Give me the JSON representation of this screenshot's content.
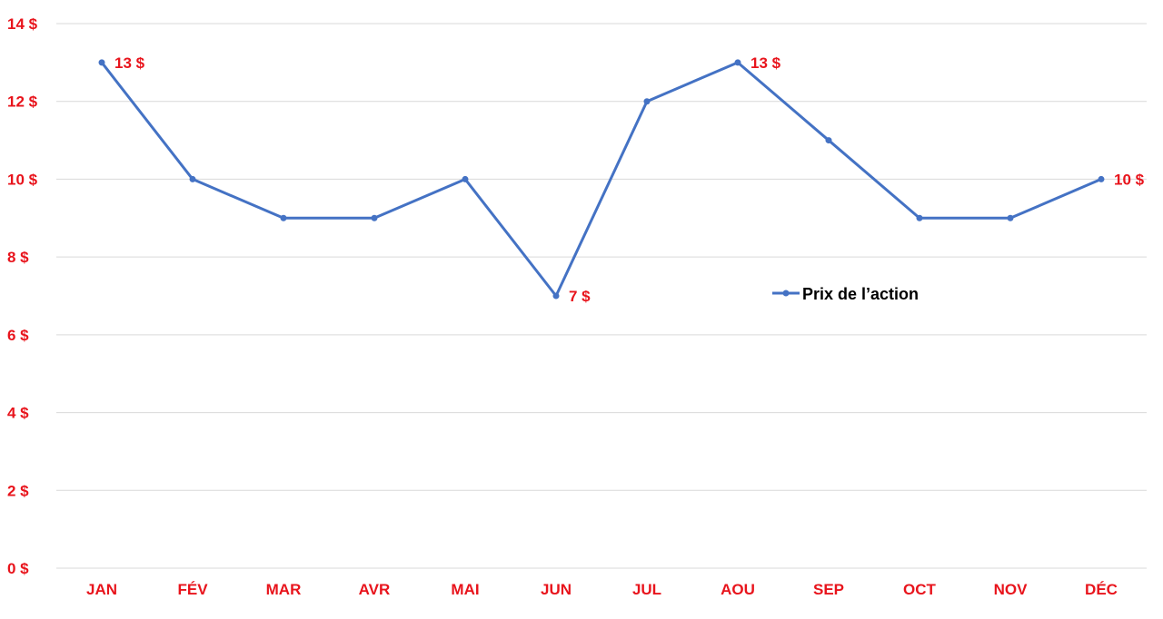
{
  "chart_data": {
    "type": "line",
    "categories": [
      "JAN",
      "FÉV",
      "MAR",
      "AVR",
      "MAI",
      "JUN",
      "JUL",
      "AOU",
      "SEP",
      "OCT",
      "NOV",
      "DÉC"
    ],
    "series": [
      {
        "name": "Prix de l’action",
        "values": [
          13,
          10,
          9,
          9,
          10,
          7,
          12,
          13,
          11,
          9,
          9,
          10
        ]
      }
    ],
    "y_ticks": [
      "0 $",
      "2 $",
      "4 $",
      "6 $",
      "8 $",
      "10 $",
      "12 $",
      "14 $"
    ],
    "ylim": [
      0,
      14
    ],
    "y_step": 2,
    "data_labels": [
      {
        "index": 0,
        "text": "13 $"
      },
      {
        "index": 5,
        "text": "7  $"
      },
      {
        "index": 7,
        "text": "13  $"
      },
      {
        "index": 11,
        "text": "10  $"
      }
    ],
    "grid": true,
    "legend": "right",
    "colors": {
      "line": "#4472c4",
      "tick_text": "#e8141c",
      "grid": "#d9d9d9",
      "legend_text": "#000000"
    }
  }
}
